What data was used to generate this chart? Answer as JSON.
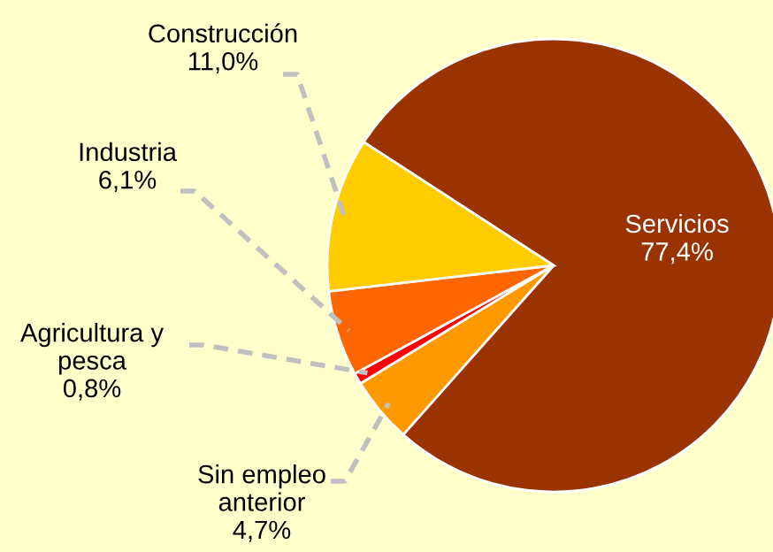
{
  "chart_data": {
    "type": "pie",
    "categories": [
      "Servicios",
      "Sin empleo anterior",
      "Agricultura y pesca",
      "Industria",
      "Construcción"
    ],
    "values": [
      77.4,
      4.7,
      0.8,
      6.1,
      11.0
    ],
    "value_labels": [
      "77,4%",
      "4,7%",
      "0,8%",
      "6,1%",
      "11,0%"
    ],
    "colors": [
      "#993300",
      "#ff9900",
      "#ff0000",
      "#ff6600",
      "#ffcc00"
    ],
    "legend": false
  }
}
